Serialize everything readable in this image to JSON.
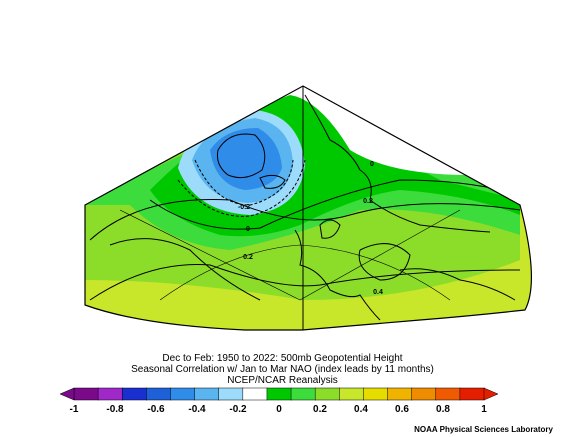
{
  "captions": {
    "line1": "Dec to Feb: 1950 to 2022: 500mb Geopotential Height",
    "line2": "Seasonal Correlation w/ Jan to Mar NAO (index leads by 11 months)",
    "line3": "NCEP/NCAR Reanalysis"
  },
  "credit": "NOAA Physical Sciences Laboratory",
  "contour_labels": [
    "-0.2",
    "0",
    "0.2",
    "0.2",
    "0",
    "0.4"
  ],
  "colorbar": {
    "min": -1,
    "max": 1,
    "tick_labels": [
      "-1",
      "-0.8",
      "-0.6",
      "-0.4",
      "-0.2",
      "0",
      "0.2",
      "0.4",
      "0.6",
      "0.8",
      "1"
    ],
    "colors": [
      "#7a0a8a",
      "#a028c8",
      "#1a2fd0",
      "#1e60d8",
      "#2f8ce8",
      "#5ab4f0",
      "#9cdcfa",
      "#ffffff",
      "#00c800",
      "#3cdc3c",
      "#8cdc2a",
      "#c8e62a",
      "#e6dc00",
      "#f0b400",
      "#f08c00",
      "#f05a00",
      "#e61e00"
    ]
  },
  "map": {
    "colors": {
      "positive_low": "#00c800",
      "positive_mid": "#8cdc2a",
      "positive_high": "#c8e62a",
      "negative_light": "#9cdcfa",
      "negative_mid": "#5ab4f0",
      "negative_dark": "#2f8ce8"
    }
  }
}
